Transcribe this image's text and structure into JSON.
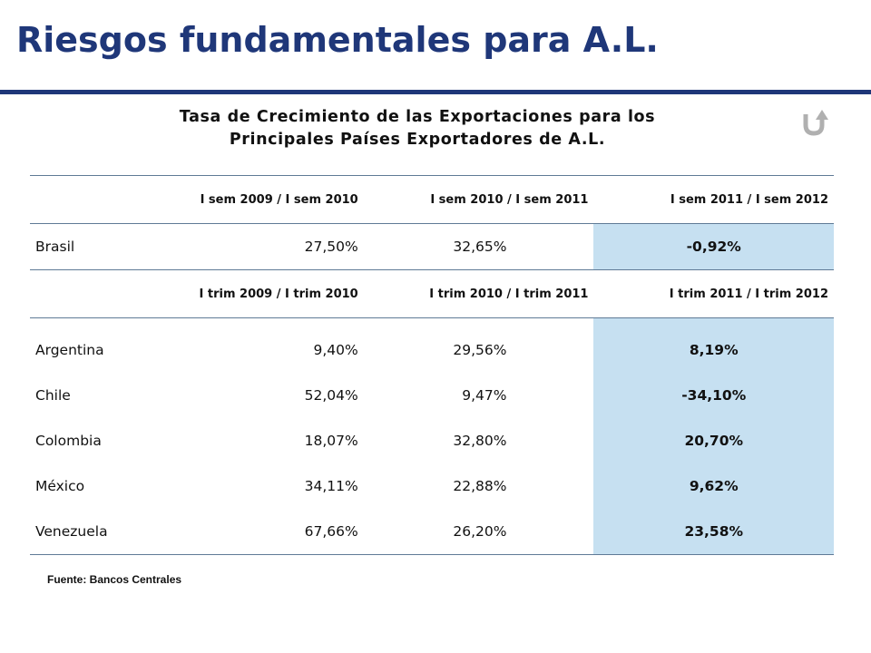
{
  "header": {
    "title": "Riesgos fundamentales para A.L.",
    "brand_color": "#1f3779"
  },
  "subtitle": {
    "line1": "Tasa de Crecimiento de las Exportaciones para los",
    "line2": "Principales Países Exportadores de A.L."
  },
  "logo": {
    "icon": "u-arrow-logo-icon",
    "color": "#b0b0b0"
  },
  "table": {
    "highlight_color": "#c6e0f1",
    "section_semester": {
      "headers": [
        "I sem 2009 / I sem 2010",
        "I sem 2010 / I sem 2011",
        "I sem 2011 / I sem 2012"
      ],
      "rows": [
        {
          "country": "Brasil",
          "v1": "27,50%",
          "v2": "32,65%",
          "v3": "-0,92%"
        }
      ]
    },
    "section_quarter": {
      "headers": [
        "I trim 2009 / I trim 2010",
        "I trim 2010 / I trim 2011",
        "I trim 2011 / I trim 2012"
      ],
      "rows": [
        {
          "country": "Argentina",
          "v1": "9,40%",
          "v2": "29,56%",
          "v3": "8,19%"
        },
        {
          "country": "Chile",
          "v1": "52,04%",
          "v2": "9,47%",
          "v3": "-34,10%"
        },
        {
          "country": "Colombia",
          "v1": "18,07%",
          "v2": "32,80%",
          "v3": "20,70%"
        },
        {
          "country": "México",
          "v1": "34,11%",
          "v2": "22,88%",
          "v3": "9,62%"
        },
        {
          "country": "Venezuela",
          "v1": "67,66%",
          "v2": "26,20%",
          "v3": "23,58%"
        }
      ]
    }
  },
  "footer": {
    "source": "Fuente: Bancos Centrales"
  }
}
